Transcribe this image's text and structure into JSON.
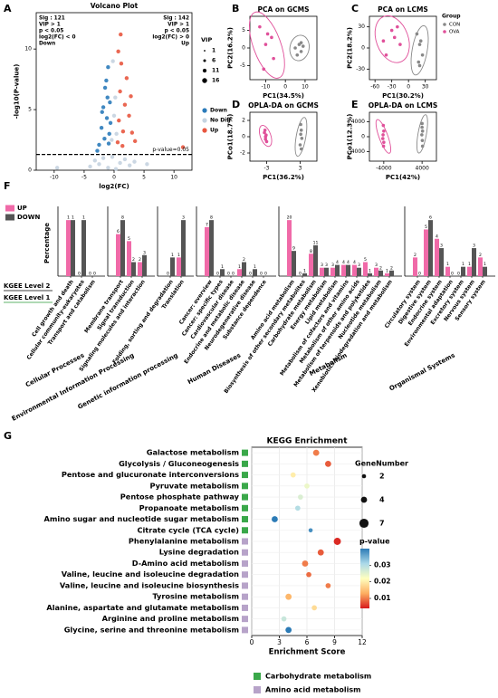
{
  "chart_data": [
    {
      "type": "volcano",
      "panel": "A",
      "title": "Volcano Plot",
      "xlabel": "log2(FC)",
      "ylabel": "-log10(P-value)",
      "xlim": [
        -13,
        13
      ],
      "xticks": [
        -10,
        -5,
        0,
        5,
        10
      ],
      "ylim": [
        0,
        13
      ],
      "yticks": [
        0,
        5,
        10
      ],
      "threshold": 1.3,
      "threshold_label": "p-value=0.05",
      "annotations_left": [
        "Sig : 121",
        "VIP > 1",
        "p < 0.05",
        "log2(FC) < 0",
        "Down"
      ],
      "annotations_right": [
        "Sig : 142",
        "VIP > 1",
        "p < 0.05",
        "log2(FC) > 0",
        "Up"
      ],
      "size_title": "VIP",
      "size_legend": [
        1,
        6,
        11,
        16
      ],
      "series": [
        {
          "name": "Down",
          "color": "#2b7bba",
          "x": [
            -2.5,
            -2.1,
            -1.8,
            -1.5,
            -1.2,
            -1.0,
            -0.8,
            -0.7,
            -1.6,
            -2.0,
            -1.3,
            -0.9,
            -2.8,
            -1.1,
            -0.6
          ],
          "y": [
            2.1,
            3.5,
            5.2,
            6.8,
            4.3,
            8.5,
            3.0,
            5.6,
            2.6,
            4.8,
            7.4,
            2.2,
            1.6,
            6.0,
            3.9
          ]
        },
        {
          "name": "No Diff",
          "color": "#c5d3e0",
          "x": [
            -4.0,
            -3.2,
            -2.5,
            -1.8,
            -1.0,
            -0.4,
            0.0,
            0.4,
            1.0,
            1.8,
            2.6,
            3.4,
            -0.2,
            0.2,
            -9.5,
            5.5,
            -0.3,
            0.3
          ],
          "y": [
            0.3,
            0.8,
            0.5,
            1.0,
            0.2,
            2.5,
            4.5,
            3.0,
            0.6,
            0.9,
            0.4,
            0.7,
            9.0,
            6.0,
            0.2,
            0.5,
            1.1,
            0.1
          ]
        },
        {
          "name": "Up",
          "color": "#e8563f",
          "x": [
            0.6,
            0.8,
            1.0,
            1.2,
            1.5,
            1.8,
            2.1,
            2.5,
            3.0,
            0.7,
            1.4,
            2.8,
            3.5,
            1.1,
            11.5
          ],
          "y": [
            2.3,
            4.1,
            6.5,
            8.8,
            3.2,
            5.4,
            7.6,
            4.5,
            3.1,
            9.8,
            2.0,
            6.1,
            2.4,
            11.2,
            1.9
          ]
        }
      ]
    },
    {
      "type": "scatter",
      "panel": "B",
      "title": "PCA on GCMS",
      "xlabel": "PC1(34.5%)",
      "ylabel": "PC2(16.2%)",
      "xlim": [
        -18,
        16
      ],
      "xticks": [
        -10,
        0,
        10
      ],
      "ylim": [
        -9,
        9
      ],
      "yticks": [
        -5,
        0,
        5
      ],
      "series": [
        {
          "color": "#888888",
          "x": [
            5,
            7,
            8,
            9,
            6,
            8
          ],
          "y": [
            0,
            1,
            -1,
            0.5,
            -2,
            1.5
          ]
        },
        {
          "color": "#e0509a",
          "x": [
            -13,
            -9,
            -10,
            -6,
            -11,
            -7
          ],
          "y": [
            6,
            4,
            1,
            -3,
            -6,
            3
          ]
        }
      ]
    },
    {
      "type": "scatter",
      "panel": "C",
      "title": "PCA on LCMS",
      "xlabel": "PC1(30.2%)",
      "ylabel": "PC2(18.2%)",
      "xlim": [
        -70,
        50
      ],
      "xticks": [
        -60,
        -30,
        0,
        30
      ],
      "ylim": [
        -45,
        45
      ],
      "yticks": [
        -30,
        0,
        30
      ],
      "legend_title": "Group",
      "series": [
        {
          "name": "CON",
          "color": "#888888",
          "x": [
            15,
            20,
            25,
            18,
            22,
            20
          ],
          "y": [
            20,
            5,
            -10,
            -20,
            10,
            -25
          ]
        },
        {
          "name": "OVA",
          "color": "#e0509a",
          "x": [
            -45,
            -30,
            -25,
            -15,
            -40,
            -20
          ],
          "y": [
            10,
            25,
            15,
            5,
            -10,
            30
          ]
        }
      ]
    },
    {
      "type": "scatter",
      "panel": "D",
      "title": "OPLA-DA on GCMS",
      "xlabel": "PC1(36.2%)",
      "ylabel": "PCo1(18.7%)",
      "xlim": [
        -6,
        6
      ],
      "xticks": [
        -3,
        3
      ],
      "ylim": [
        -3,
        3
      ],
      "yticks": [
        -2,
        0,
        2
      ],
      "series": [
        {
          "color": "#888888",
          "x": [
            3.1,
            3.2,
            3.3,
            3.0,
            3.1,
            3.2
          ],
          "y": [
            1.5,
            0.8,
            -0.2,
            -1.0,
            0.3,
            -1.5
          ]
        },
        {
          "color": "#e0509a",
          "x": [
            -3.4,
            -3.1,
            -3.2,
            -3.3,
            -3.0,
            -3.2
          ],
          "y": [
            0.5,
            0.2,
            -0.3,
            0.8,
            -0.6,
            0
          ]
        }
      ]
    },
    {
      "type": "scatter",
      "panel": "E",
      "title": "OPLA-DA on LCMS",
      "xlabel": "PC1(42%)",
      "ylabel": "PCo1(12.3%)",
      "xlim": [
        -7000,
        7000
      ],
      "xticks": [
        -4000,
        4000
      ],
      "ylim": [
        -6500,
        6500
      ],
      "yticks": [
        -4000,
        0,
        4000
      ],
      "series": [
        {
          "color": "#888888",
          "x": [
            4000,
            4100,
            3950,
            4050,
            4100,
            4000
          ],
          "y": [
            2500,
            1500,
            500,
            -1000,
            -2500,
            3500
          ]
        },
        {
          "color": "#e0509a",
          "x": [
            -4100,
            -4000,
            -4200,
            -4050,
            -4150,
            -4000
          ],
          "y": [
            3000,
            1500,
            -500,
            -2500,
            500,
            -1500
          ]
        }
      ]
    },
    {
      "type": "bar",
      "panel": "F",
      "ylabel": "Percentage",
      "level_labels": [
        "KGEE Level 2",
        "KGEE Level 1"
      ],
      "level1_color": "#2a9a3a",
      "series": [
        {
          "name": "UP",
          "color": "#f06aa8"
        },
        {
          "name": "DOWN",
          "color": "#555555"
        }
      ],
      "groups": [
        {
          "name": "Cellular Processes",
          "categories": [
            "Cell growth and death",
            "Cellular community-eukaryotes",
            "Transport and catabolism"
          ],
          "values": [
            [
              1,
              0,
              0
            ],
            [
              1,
              1,
              0
            ]
          ]
        },
        {
          "name": "Environmental Information Processing",
          "categories": [
            "Membrane transport",
            "Signal transduction",
            "Signaling molecules and interaction"
          ],
          "values": [
            [
              6,
              5,
              2
            ],
            [
              8,
              2,
              3
            ]
          ]
        },
        {
          "name": "Genetic information processing",
          "categories": [
            "Folding, sorting and degradation",
            "Translation"
          ],
          "values": [
            [
              0,
              1
            ],
            [
              1,
              3
            ]
          ]
        },
        {
          "name": "Human Diseases",
          "categories": [
            "Cancer: overview",
            "Cancer: specific types",
            "Cardiovascular disease",
            "Endocrine and metabolic disease",
            "Neurodegenerative disease",
            "Substance dependence"
          ],
          "values": [
            [
              7,
              0,
              0,
              1,
              0,
              0
            ],
            [
              8,
              1,
              0,
              2,
              1,
              0
            ]
          ]
        },
        {
          "name": "Metabolism",
          "categories": [
            "Amino acid metabolism",
            "Biosynthesis of other secondary metabolites",
            "Carbohydrate metabolism",
            "Energy metabolism",
            "Lipid metabolism",
            "Metabolism of cofactors and vitamins",
            "Metabolism of other amino acids",
            "Metabolism of terpenoids and polyketides",
            "Nucleotide metabolism",
            "Xenobiotics biodegradation and metabolism"
          ],
          "values": [
            [
              20,
              0,
              8,
              3,
              3,
              4,
              4,
              5,
              3,
              1
            ],
            [
              9,
              1,
              11,
              3,
              4,
              4,
              3,
              1,
              2,
              2
            ]
          ]
        },
        {
          "name": "Organismal Systems",
          "categories": [
            "Circulatory system",
            "Digestive system",
            "Endocrine system",
            "Environmental adaptation",
            "Excretory system",
            "Nervous system",
            "Sensory system"
          ],
          "values": [
            [
              2,
              5,
              4,
              1,
              0,
              1,
              2
            ],
            [
              0,
              6,
              3,
              0,
              1,
              3,
              1
            ]
          ]
        }
      ]
    },
    {
      "type": "bubble",
      "panel": "G",
      "title": "KEGG Enrichment",
      "xlabel": "Enrichment Score",
      "xlim": [
        0,
        12
      ],
      "xticks": [
        0,
        3,
        6,
        9,
        12
      ],
      "grid": true,
      "size_title": "GeneNumber",
      "size_legend": [
        2,
        4,
        7
      ],
      "color_title": "p-value",
      "clim": [
        0.004,
        0.04
      ],
      "cticks": [
        0.01,
        0.02,
        0.03
      ],
      "colormap": [
        "#d7191c",
        "#fdae61",
        "#ffffbf",
        "#abd9e9",
        "#2c7bb6"
      ],
      "series": [
        {
          "name": "Carbohydrate metabolism",
          "color": "#3aa84a",
          "categories": [
            "Galactose metabolism",
            "Glycolysis / Gluconeogenesis",
            "Pentose and glucuronate interconversions",
            "Pyruvate metabolism",
            "Pentose phosphate pathway",
            "Propanoate metabolism",
            "Amino sugar and nucleotide sugar metabolism",
            "Citrate cycle (TCA cycle)"
          ],
          "x": [
            7.0,
            8.3,
            4.5,
            6.0,
            5.3,
            5.0,
            2.5,
            6.4
          ],
          "size": [
            4,
            4,
            3,
            3,
            3,
            3,
            4,
            2
          ],
          "pvalue": [
            0.01,
            0.008,
            0.02,
            0.024,
            0.026,
            0.03,
            0.04,
            0.038
          ]
        },
        {
          "name": "Amino acid metabolism",
          "color": "#b7a3c9",
          "categories": [
            "Phenylalanine metabolism",
            "Lysine degradation",
            "D-Amino acid metabolism",
            "Valine, leucine and isoleucine degradation",
            "Valine, leucine and isoleucine biosynthesis",
            "Tyrosine metabolism",
            "Alanine, aspartate and glutamate metabolism",
            "Arginine and proline metabolism",
            "Glycine, serine and threonine metabolism"
          ],
          "x": [
            9.3,
            7.5,
            5.8,
            6.2,
            8.3,
            4.0,
            6.8,
            3.5,
            4.0
          ],
          "size": [
            5,
            4,
            4,
            3,
            3,
            4,
            3,
            3,
            4
          ],
          "pvalue": [
            0.005,
            0.008,
            0.01,
            0.009,
            0.01,
            0.014,
            0.018,
            0.028,
            0.04
          ]
        }
      ]
    }
  ]
}
